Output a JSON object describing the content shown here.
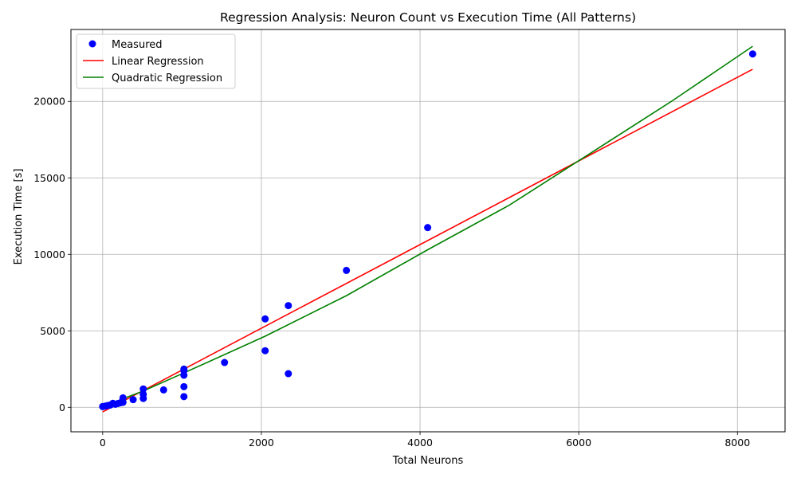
{
  "chart_data": {
    "type": "scatter",
    "title": "Regression Analysis: Neuron Count vs Execution Time (All Patterns)",
    "xlabel": "Total Neurons",
    "ylabel": "Execution Time [s]",
    "xlim": [
      -400,
      8600
    ],
    "ylim": [
      -1600,
      24700
    ],
    "xticks": [
      0,
      2000,
      4000,
      6000,
      8000
    ],
    "yticks": [
      0,
      5000,
      10000,
      15000,
      20000
    ],
    "xtick_labels": [
      "0",
      "2000",
      "4000",
      "6000",
      "8000"
    ],
    "ytick_labels": [
      "0",
      "5000",
      "10000",
      "15000",
      "20000"
    ],
    "grid": true,
    "legend_position": "upper-left",
    "series": [
      {
        "name": "Measured",
        "kind": "scatter",
        "color": "#0000ff",
        "x": [
          0,
          32,
          64,
          96,
          128,
          160,
          192,
          224,
          256,
          256,
          384,
          512,
          512,
          512,
          768,
          1024,
          1024,
          1024,
          1024,
          1024,
          1536,
          2048,
          2048,
          2340,
          2340,
          3072,
          4096,
          8192
        ],
        "y": [
          50,
          80,
          120,
          150,
          260,
          200,
          250,
          300,
          620,
          330,
          500,
          1200,
          850,
          580,
          1140,
          2500,
          2100,
          1350,
          700,
          2400,
          2930,
          5780,
          3700,
          6650,
          2200,
          8950,
          11750,
          23100
        ]
      },
      {
        "name": "Linear Regression",
        "kind": "line",
        "color": "#ff0000",
        "x": [
          0,
          8192
        ],
        "y": [
          -300,
          22100
        ]
      },
      {
        "name": "Quadratic Regression",
        "kind": "line",
        "color": "#008000",
        "x": [
          0,
          512,
          1024,
          2048,
          3072,
          4096,
          5120,
          6144,
          7168,
          8192
        ],
        "y": [
          50,
          1070,
          2250,
          4650,
          7300,
          10300,
          13200,
          16600,
          20000,
          23600
        ]
      }
    ]
  }
}
